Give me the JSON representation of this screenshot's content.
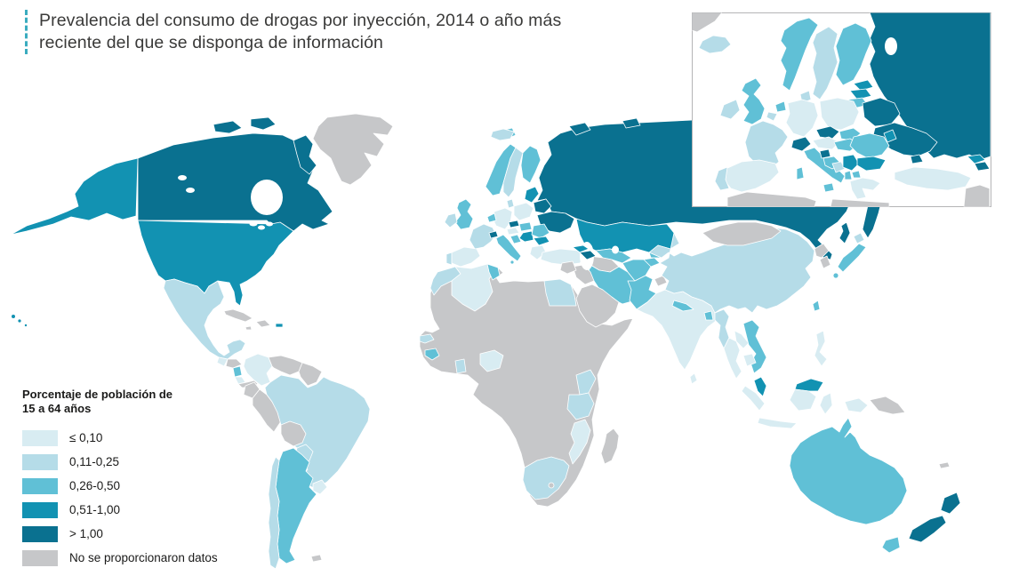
{
  "title": {
    "line1": "Prevalencia del consumo de drogas por inyección, 2014 o año más",
    "line2": "reciente del que se disponga de información"
  },
  "theme": {
    "accent_color": "#3aacbf",
    "title_text_color": "#3a3a39",
    "legend_text_color": "#1a1a19"
  },
  "legend": {
    "title_line1": "Porcentaje de población de",
    "title_line2": "15 a 64 años",
    "items": [
      {
        "key": "le010",
        "label": "≤ 0,10",
        "color": "#d8ecf2"
      },
      {
        "key": "b011_025",
        "label": "0,11-0,25",
        "color": "#b5dce8"
      },
      {
        "key": "b026_050",
        "label": "0,26-0,50",
        "color": "#60c0d6"
      },
      {
        "key": "b051_100",
        "label": "0,51-1,00",
        "color": "#1292b2"
      },
      {
        "key": "gt100",
        "label": "> 1,00",
        "color": "#0a7190"
      },
      {
        "key": "nodata",
        "label": "No se proporcionaron datos",
        "color": "#c6c7c9"
      }
    ]
  },
  "map": {
    "ocean_color": "#ffffff",
    "border_color": "#ffffff",
    "inset_border_color": "#b4b4b6",
    "regions": {
      "greenland": "nodata",
      "canada": "gt100",
      "alaska": "b051_100",
      "usa": "b051_100",
      "hawaii": "b051_100",
      "mexico": "b011_025",
      "guatemala": "le010",
      "honduras": "nodata",
      "nicaragua": "b026_050",
      "costa-rica": "le010",
      "panama": "nodata",
      "cuba": "nodata",
      "hispaniola": "nodata",
      "jamaica": "nodata",
      "puerto-rico": "b051_100",
      "colombia": "le010",
      "venezuela": "nodata",
      "guyanas": "nodata",
      "ecuador": "nodata",
      "peru": "nodata",
      "brazil": "b011_025",
      "bolivia": "nodata",
      "paraguay": "b011_025",
      "uruguay": "le010",
      "argentina": "b026_050",
      "chile": "b011_025",
      "falklands": "nodata",
      "africa": "nodata",
      "morocco": "b011_025",
      "algeria": "le010",
      "tunisia": "b026_050",
      "egypt": "b011_025",
      "senegal": "b011_025",
      "guinea": "b026_050",
      "ghana": "b011_025",
      "nigeria": "le010",
      "kenya": "b011_025",
      "tanzania": "b011_025",
      "mozambique": "le010",
      "south-africa": "b011_025",
      "lesotho": "nodata",
      "madagascar": "nodata",
      "iceland": "b011_025",
      "svalbard": "b026_050",
      "norway": "b026_050",
      "sweden": "b011_025",
      "finland": "b026_050",
      "uk": "b026_050",
      "ireland": "b011_025",
      "denmark": "b011_025",
      "benelux": "b026_050",
      "germany": "le010",
      "france": "b011_025",
      "spain": "le010",
      "portugal": "b011_025",
      "switzerland": "gt100",
      "czechia": "gt100",
      "austria": "le010",
      "italy": "b026_050",
      "croatia": "b026_050",
      "poland": "le010",
      "baltics": "b051_100",
      "belarus": "gt100",
      "ukraine": "gt100",
      "romania": "b026_050",
      "bulgaria": "b051_100",
      "greece": "le010",
      "serbia": "b051_100",
      "hungary": "b026_050",
      "turkey": "le010",
      "russia": "gt100",
      "kazakhstan": "b051_100",
      "uzbekistan": "b026_050",
      "turkmenistan": "nodata",
      "kyrgyzstan": "b026_050",
      "tajikistan": "b026_050",
      "georgia": "b051_100",
      "azerbaijan": "gt100",
      "iran": "b026_050",
      "iraq": "nodata",
      "arabian-peninsula": "nodata",
      "levant": "nodata",
      "afghanistan": "b026_050",
      "pakistan": "b026_050",
      "india": "le010",
      "kashmir": "nodata",
      "nepal": "b026_050",
      "bangladesh": "b026_050",
      "sri-lanka": "le010",
      "myanmar": "b011_025",
      "thailand": "le010",
      "laos": "le010",
      "vietnam": "b026_050",
      "cambodia": "le010",
      "malaysia": "b051_100",
      "indonesia": "le010",
      "papua-new-guinea": "nodata",
      "philippines": "le010",
      "taiwan": "b026_050",
      "china": "b011_025",
      "mongolia": "nodata",
      "north-korea": "nodata",
      "south-korea": "nodata",
      "japan": "b026_050",
      "hokkaido": "b011_025",
      "australia": "b026_050",
      "tasmania": "b026_050",
      "new-zealand": "gt100",
      "new-caledonia": "nodata",
      "inset-greenland": "nodata",
      "inset-iceland": "b011_025",
      "inset-norway": "b026_050",
      "inset-sweden": "b011_025",
      "inset-finland": "b026_050",
      "inset-denmark": "b011_025",
      "inset-uk": "b026_050",
      "inset-ireland": "b011_025",
      "inset-netherlands": "b026_050",
      "inset-belgium": "b011_025",
      "inset-germany": "le010",
      "inset-poland": "le010",
      "inset-czechia": "gt100",
      "inset-slovakia": "b026_050",
      "inset-austria": "le010",
      "inset-switzerland": "gt100",
      "inset-france": "b011_025",
      "inset-spain": "le010",
      "inset-portugal": "b011_025",
      "inset-italy": "b026_050",
      "inset-slovenia": "gt100",
      "inset-croatia": "b026_050",
      "inset-bosnia": "b011_025",
      "inset-serbia": "b051_100",
      "inset-hungary": "b026_050",
      "inset-romania": "b026_050",
      "inset-moldova": "b051_100",
      "inset-bulgaria": "b051_100",
      "inset-albania": "b026_050",
      "inset-macedonia": "b026_050",
      "inset-greece": "le010",
      "inset-estonia": "b051_100",
      "inset-latvia": "b051_100",
      "inset-lithuania": "b026_050",
      "inset-kaliningrad": "gt100",
      "inset-belarus": "gt100",
      "inset-ukraine": "gt100",
      "inset-russia": "gt100",
      "inset-turkey": "le010",
      "inset-georgia": "b051_100",
      "inset-azerbaijan": "gt100",
      "inset-north-africa": "nodata",
      "inset-middle-east": "nodata"
    }
  }
}
